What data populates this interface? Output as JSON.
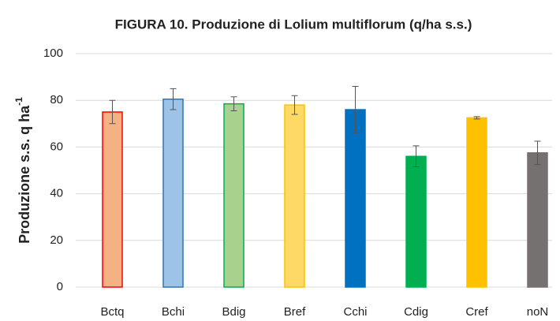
{
  "chart_data": {
    "type": "bar",
    "title": "FIGURA 10. Produzione di Lolium multiflorum (q/ha s.s.)",
    "y_label": "Produzione s.s. q ha",
    "y_label_superscript": "-1",
    "categories": [
      "Bctq",
      "Bchi",
      "Bdig",
      "Bref",
      "Cchi",
      "Cdig",
      "Cref",
      "noN"
    ],
    "values": [
      75,
      80.5,
      78.5,
      78,
      76,
      56,
      72.5,
      57.5
    ],
    "errors": [
      5,
      4.5,
      3,
      4,
      10,
      4.5,
      0.5,
      5
    ],
    "colors": [
      "#f4b183",
      "#9dc3e6",
      "#a9d18e",
      "#ffd966",
      "#0070c0",
      "#00b050",
      "#ffc000",
      "#767171"
    ],
    "edge_colors": [
      "#ff0000",
      "#2e75b6",
      "#00b050",
      "#ffc000",
      "#0070c0",
      "#00b050",
      "#ffc000",
      "#767171"
    ],
    "ylim": [
      0,
      100
    ],
    "yticks": [
      0,
      20,
      40,
      60,
      80,
      100
    ],
    "grid": true
  }
}
